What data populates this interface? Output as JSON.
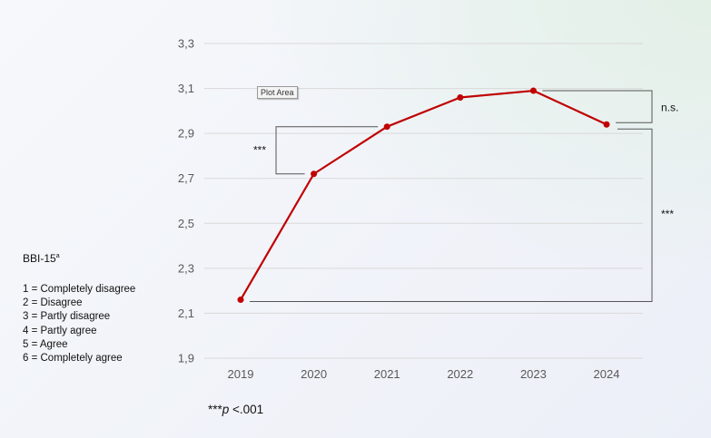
{
  "chart_data": {
    "type": "line",
    "x": [
      "2019",
      "2020",
      "2021",
      "2022",
      "2023",
      "2024"
    ],
    "series": [
      {
        "values": [
          2.16,
          2.72,
          2.93,
          3.06,
          3.09,
          2.94
        ],
        "color": "#c00000"
      }
    ],
    "ylim": [
      1.9,
      3.3
    ],
    "yticks": [
      "1,9",
      "2,1",
      "2,3",
      "2,5",
      "2,7",
      "2,9",
      "3,1",
      "3,3"
    ],
    "grid": true,
    "annotations": [
      {
        "label": "***",
        "from": "2020",
        "to": "2021"
      },
      {
        "label": "n.s.",
        "from": "2023",
        "to": "2024"
      },
      {
        "label": "***",
        "from": "2019",
        "to": "2024"
      }
    ]
  },
  "legend": {
    "title_base": "BBI-15",
    "title_sup": "a",
    "items": [
      "1 = Completely disagree",
      "2 = Disagree",
      "3 = Partly disagree",
      "4 = Partly agree",
      "5 = Agree",
      "6 = Completely agree"
    ]
  },
  "note": {
    "stars": "***",
    "p": "p",
    "rest": " <.001"
  },
  "tooltip": "Plot Area",
  "colors": {
    "line": "#c00000",
    "bracket": "#555555",
    "grid": "#d9d9d9"
  }
}
